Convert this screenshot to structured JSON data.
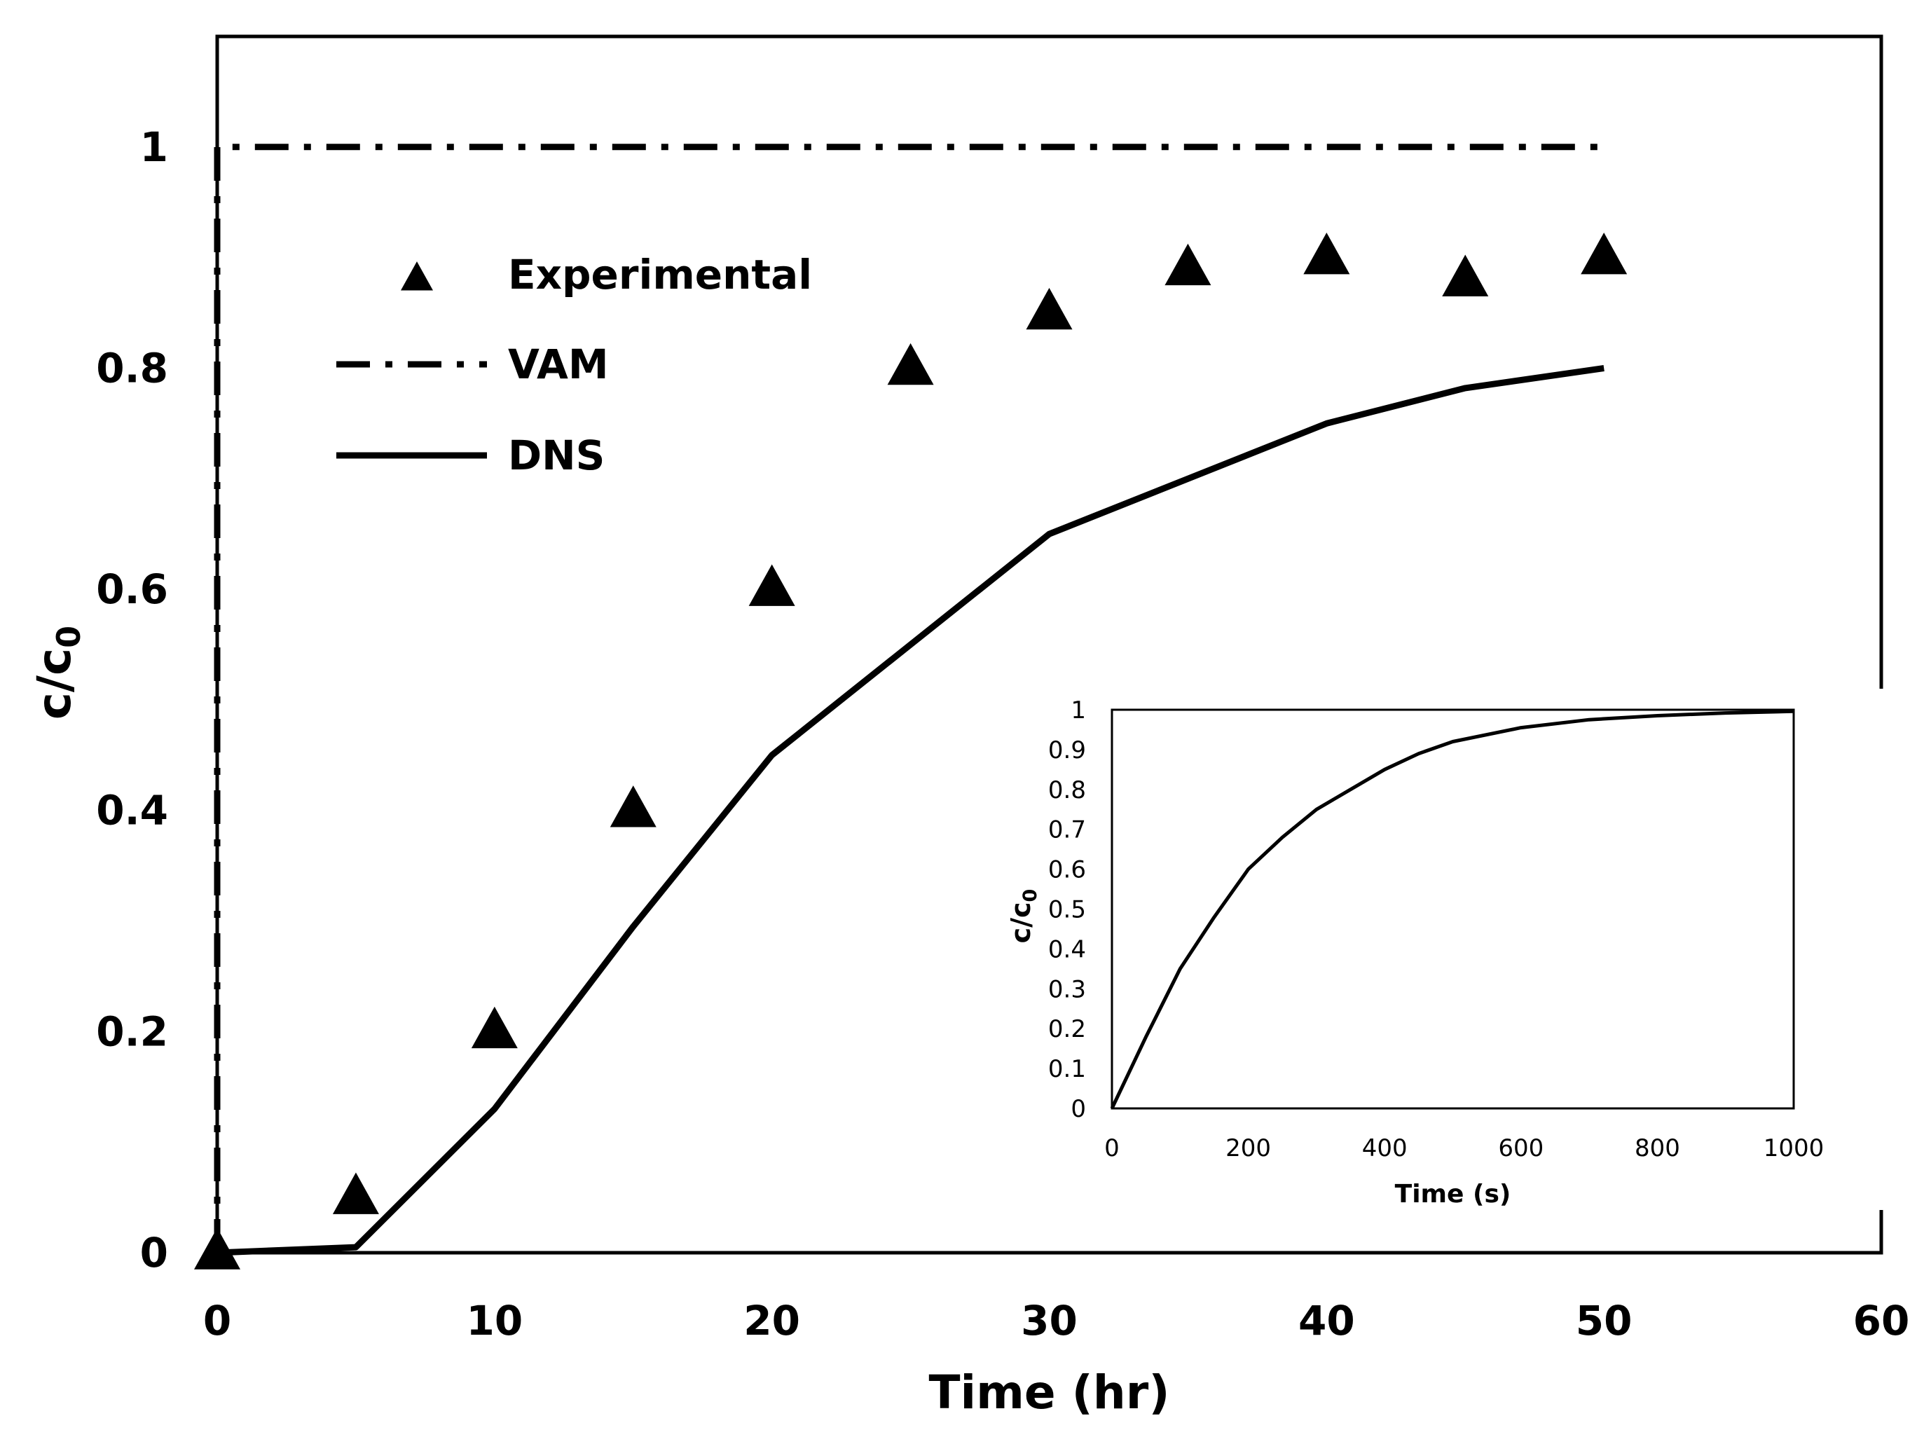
{
  "chart_data": [
    {
      "type": "line",
      "xlabel": "Time (hr)",
      "ylabel": "c/c",
      "ylabel_subscript": "0",
      "xlim": [
        0,
        60
      ],
      "ylim": [
        0,
        1.1
      ],
      "xticks": [
        "0",
        "10",
        "20",
        "30",
        "40",
        "50",
        "60"
      ],
      "xtick_values": [
        0,
        10,
        20,
        30,
        40,
        50,
        60
      ],
      "yticks": [
        "0",
        "0.2",
        "0.4",
        "0.6",
        "0.8",
        "1"
      ],
      "ytick_values": [
        0,
        0.2,
        0.4,
        0.6,
        0.8,
        1
      ],
      "grid": false,
      "legend_position": "upper-left",
      "series": [
        {
          "name": "Experimental",
          "style": "triangle-markers",
          "x": [
            0,
            5,
            10,
            15,
            20,
            25,
            30,
            35,
            40,
            45,
            50
          ],
          "y": [
            0,
            0.05,
            0.2,
            0.4,
            0.6,
            0.8,
            0.85,
            0.89,
            0.9,
            0.88,
            0.9
          ]
        },
        {
          "name": "VAM",
          "style": "dash-dot",
          "x": [
            0,
            0,
            50
          ],
          "y": [
            0,
            1,
            1
          ]
        },
        {
          "name": "DNS",
          "style": "solid",
          "x": [
            0,
            5,
            10,
            15,
            20,
            25,
            30,
            35,
            40,
            45,
            50
          ],
          "y": [
            0.0,
            0.005,
            0.13,
            0.295,
            0.45,
            0.55,
            0.65,
            0.7,
            0.75,
            0.782,
            0.8
          ]
        }
      ]
    },
    {
      "type": "line",
      "xlabel": "Time (s)",
      "ylabel": "c/c",
      "ylabel_subscript": "0",
      "xlim": [
        0,
        1000
      ],
      "ylim": [
        0,
        1
      ],
      "xticks": [
        "0",
        "200",
        "400",
        "600",
        "800",
        "1000"
      ],
      "xtick_values": [
        0,
        200,
        400,
        600,
        800,
        1000
      ],
      "yticks": [
        "0",
        "0.1",
        "0.2",
        "0.3",
        "0.4",
        "0.5",
        "0.6",
        "0.7",
        "0.8",
        "0.9",
        "1"
      ],
      "ytick_values": [
        0,
        0.1,
        0.2,
        0.3,
        0.4,
        0.5,
        0.6,
        0.7,
        0.8,
        0.9,
        1
      ],
      "grid": false,
      "series": [
        {
          "style": "solid",
          "x": [
            0,
            50,
            100,
            150,
            200,
            250,
            300,
            350,
            400,
            450,
            500,
            600,
            700,
            800,
            900,
            1000
          ],
          "y": [
            0,
            0.18,
            0.35,
            0.48,
            0.6,
            0.68,
            0.75,
            0.8,
            0.85,
            0.89,
            0.92,
            0.955,
            0.975,
            0.985,
            0.992,
            0.996
          ]
        }
      ]
    }
  ]
}
